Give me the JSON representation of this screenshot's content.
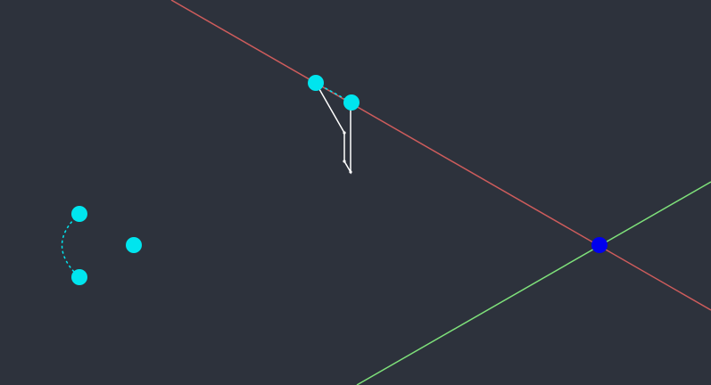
{
  "canvas": {
    "background_color": "#2d323c"
  },
  "axes": {
    "x_axis_color": "#cd5c5c",
    "y_axis_color": "#7ee07a",
    "origin_marker_color": "#0000ee"
  },
  "selection": {
    "grip_color": "#00e5ee",
    "dashed_link_color": "#00e5ee",
    "grip_count": 5
  },
  "geometry": {
    "polyline_color": "#ffffff",
    "arc_color": "#00e5ee"
  }
}
